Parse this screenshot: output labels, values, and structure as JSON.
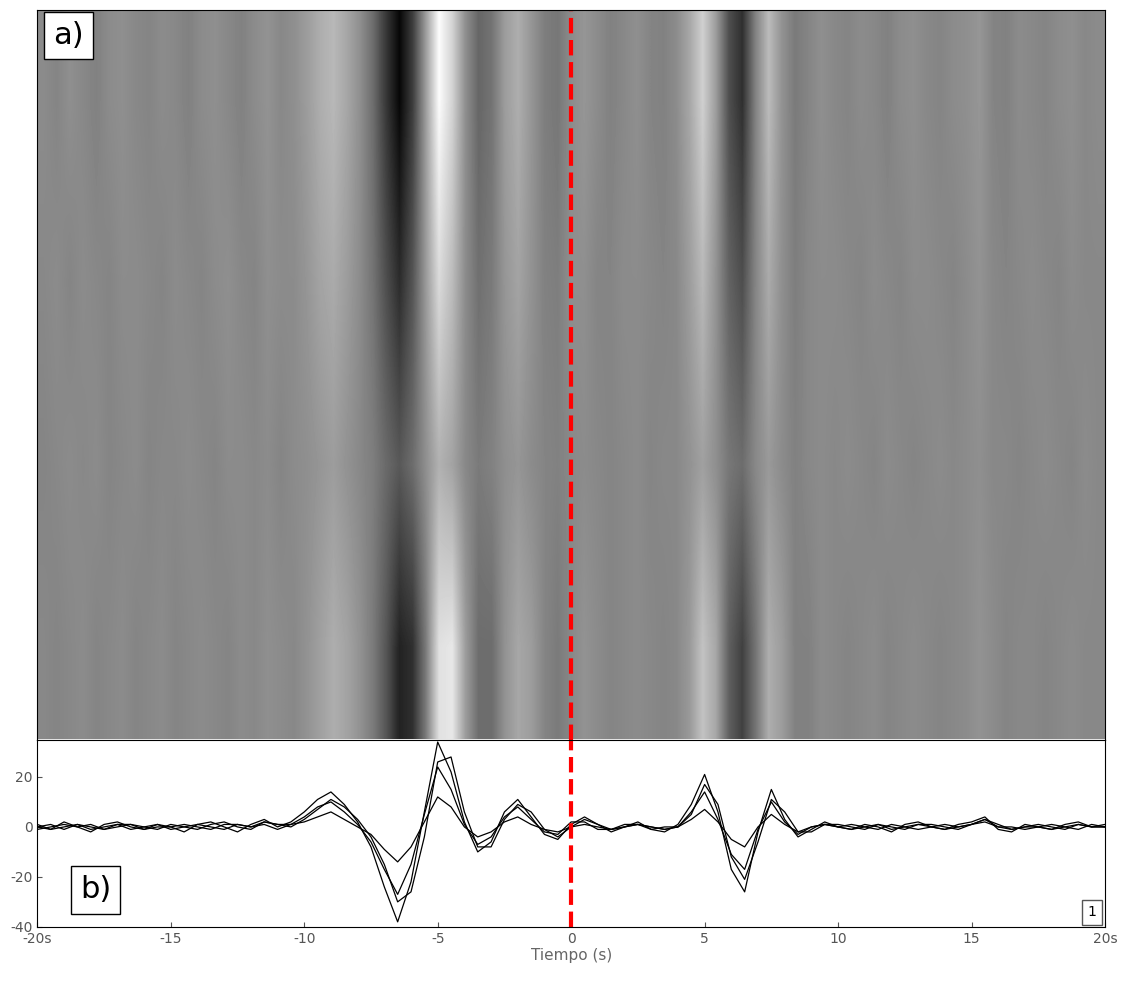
{
  "chart_data": [
    {
      "type": "heatmap",
      "label": "a)",
      "tick_labels": false,
      "xlim": [
        -20,
        20
      ],
      "color": "gray",
      "vline": {
        "x": 0,
        "color": "#ff0000",
        "line_style": "dashed"
      }
    },
    {
      "type": "line",
      "label": "b)",
      "annotation": "1",
      "xlabel": "Tiempo (s)",
      "xlim": [
        -20,
        20
      ],
      "xticks": [
        {
          "value": -20,
          "label": "-20s"
        },
        -15,
        -10,
        -5,
        0,
        5,
        10,
        15,
        {
          "value": 20,
          "label": "20s"
        }
      ],
      "ylim": [
        -40,
        35
      ],
      "yticks": [
        -40,
        -20,
        0,
        20
      ],
      "vline": {
        "x": 0,
        "color": "#ff0000",
        "line_style": "dashed"
      },
      "x": [
        -20,
        -19.5,
        -19,
        -18.5,
        -18,
        -17.5,
        -17,
        -16.5,
        -16,
        -15.5,
        -15,
        -14.5,
        -14,
        -13.5,
        -13,
        -12.5,
        -12,
        -11.5,
        -11,
        -10.5,
        -10,
        -9.5,
        -9,
        -8.5,
        -8,
        -7.5,
        -7,
        -6.5,
        -6,
        -5.5,
        -5,
        -4.5,
        -4,
        -3.5,
        -3,
        -2.5,
        -2,
        -1.5,
        -1,
        -0.5,
        0,
        0.5,
        1,
        1.5,
        2,
        2.5,
        3,
        3.5,
        4,
        4.5,
        5,
        5.5,
        6,
        6.5,
        7,
        7.5,
        8,
        8.5,
        9,
        9.5,
        10,
        10.5,
        11,
        11.5,
        12,
        12.5,
        13,
        13.5,
        14,
        14.5,
        15,
        15.5,
        16,
        16.5,
        17,
        17.5,
        18,
        18.5,
        19,
        19.5,
        20
      ],
      "series": [
        {
          "color": "#000000",
          "values": [
            1,
            -1,
            2,
            0,
            -2,
            1,
            2,
            0,
            -1,
            1,
            0,
            -2,
            1,
            2,
            0,
            -2,
            1,
            3,
            0,
            2,
            6,
            11,
            14,
            9,
            2,
            -8,
            -24,
            -38,
            -22,
            6,
            34,
            22,
            2,
            -10,
            -6,
            6,
            11,
            4,
            -3,
            -5,
            1,
            4,
            1,
            -2,
            0,
            2,
            -1,
            -2,
            1,
            9,
            21,
            6,
            -17,
            -26,
            -2,
            15,
            3,
            -4,
            -1,
            2,
            0,
            -1,
            1,
            0,
            -2,
            1,
            2,
            0,
            -1,
            1,
            2,
            4,
            -1,
            -2,
            1,
            0,
            -1,
            1,
            2,
            0,
            1
          ]
        },
        {
          "color": "#000000",
          "values": [
            0,
            1,
            -1,
            1,
            0,
            -1,
            1,
            1,
            0,
            -1,
            1,
            0,
            -1,
            1,
            2,
            0,
            -1,
            2,
            1,
            1,
            4,
            8,
            10,
            6,
            1,
            -6,
            -17,
            -27,
            -15,
            5,
            24,
            15,
            1,
            -7,
            -4,
            4,
            8,
            3,
            -2,
            -3,
            2,
            2,
            -1,
            -1,
            1,
            1,
            0,
            -1,
            0,
            6,
            14,
            3,
            -11,
            -17,
            -1,
            10,
            2,
            -3,
            0,
            1,
            1,
            0,
            -1,
            1,
            0,
            -1,
            1,
            1,
            0,
            -1,
            1,
            3,
            0,
            -1,
            0,
            1,
            0,
            -1,
            1,
            0,
            0
          ]
        },
        {
          "color": "#000000",
          "values": [
            -1,
            0,
            1,
            0,
            1,
            -1,
            0,
            1,
            -1,
            0,
            0,
            1,
            0,
            -1,
            1,
            1,
            0,
            1,
            -1,
            1,
            2,
            4,
            6,
            3,
            0,
            -3,
            -9,
            -14,
            -8,
            2,
            12,
            8,
            0,
            -4,
            -2,
            2,
            4,
            1,
            -1,
            -2,
            0,
            1,
            0,
            -1,
            0,
            1,
            -1,
            0,
            0,
            3,
            7,
            2,
            -5,
            -8,
            0,
            5,
            1,
            -2,
            0,
            1,
            0,
            1,
            0,
            -1,
            1,
            0,
            -1,
            0,
            1,
            0,
            1,
            2,
            0,
            0,
            -1,
            0,
            1,
            0,
            -1,
            1,
            0
          ]
        },
        {
          "color": "#000000",
          "values": [
            0,
            -1,
            0,
            1,
            -1,
            0,
            1,
            -1,
            0,
            1,
            -1,
            0,
            1,
            0,
            -1,
            1,
            0,
            2,
            1,
            0,
            3,
            7,
            11,
            8,
            3,
            -4,
            -15,
            -30,
            -26,
            -4,
            26,
            28,
            6,
            -8,
            -8,
            3,
            9,
            6,
            -1,
            -4,
            0,
            3,
            1,
            -1,
            0,
            1,
            0,
            -1,
            0,
            5,
            17,
            9,
            -12,
            -21,
            -6,
            11,
            6,
            -2,
            -2,
            1,
            0,
            -1,
            0,
            1,
            -1,
            0,
            1,
            0,
            -1,
            0,
            1,
            3,
            1,
            -1,
            0,
            0,
            -1,
            0,
            1,
            0,
            0
          ]
        }
      ]
    }
  ]
}
